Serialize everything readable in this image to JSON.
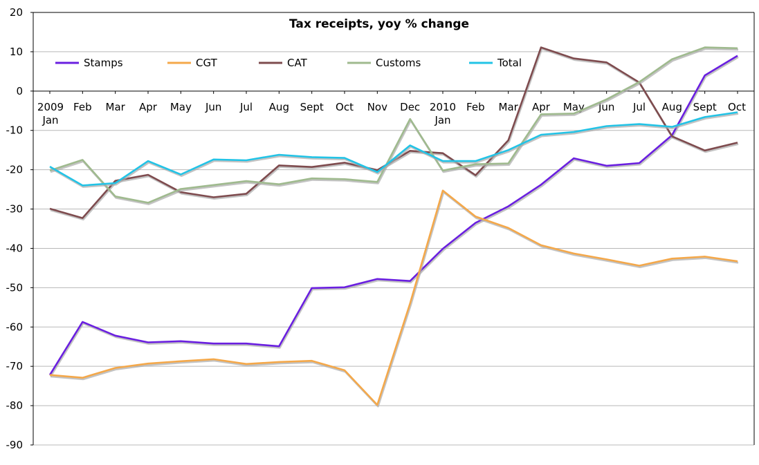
{
  "chart_data": {
    "type": "line",
    "title": "Tax receipts, yoy % change",
    "xlabel": "",
    "ylabel": "",
    "ylim": [
      -90,
      20
    ],
    "yticks": [
      20,
      10,
      0,
      -10,
      -20,
      -30,
      -40,
      -50,
      -60,
      -70,
      -80,
      -90
    ],
    "grid": true,
    "legend_position": "top",
    "categories": [
      {
        "label": "2009",
        "sub": "Jan"
      },
      {
        "label": "Feb"
      },
      {
        "label": "Mar"
      },
      {
        "label": "Apr"
      },
      {
        "label": "May"
      },
      {
        "label": "Jun"
      },
      {
        "label": "Jul"
      },
      {
        "label": "Aug"
      },
      {
        "label": "Sept"
      },
      {
        "label": "Oct"
      },
      {
        "label": "Nov"
      },
      {
        "label": "Dec"
      },
      {
        "label": "2010",
        "sub": "Jan"
      },
      {
        "label": "Feb"
      },
      {
        "label": "Mar"
      },
      {
        "label": "Apr"
      },
      {
        "label": "May"
      },
      {
        "label": "Jun"
      },
      {
        "label": "Jul"
      },
      {
        "label": "Aug"
      },
      {
        "label": "Sept"
      },
      {
        "label": "Oct"
      }
    ],
    "series": [
      {
        "name": "Stamps",
        "color": "#6a1fe0",
        "values": [
          -72.2,
          -58.7,
          -62.2,
          -63.9,
          -63.6,
          -64.2,
          -64.2,
          -64.9,
          -50.1,
          -49.9,
          -47.8,
          -48.3,
          -40.1,
          -33.5,
          -29.3,
          -23.8,
          -17.1,
          -19.0,
          -18.3,
          -11.2,
          4.0,
          9.0
        ]
      },
      {
        "name": "CGT",
        "color": "#f4a84a",
        "values": [
          -72.2,
          -72.9,
          -70.4,
          -69.3,
          -68.7,
          -68.2,
          -69.4,
          -68.9,
          -68.6,
          -71.0,
          -79.8,
          -54.0,
          -25.3,
          -31.9,
          -34.8,
          -39.2,
          -41.3,
          -42.8,
          -44.4,
          -42.6,
          -42.1,
          -43.3
        ]
      },
      {
        "name": "CAT",
        "color": "#7e4b4e",
        "values": [
          -29.9,
          -32.3,
          -22.8,
          -21.3,
          -25.7,
          -27.0,
          -26.1,
          -18.9,
          -19.3,
          -18.2,
          -20.1,
          -15.2,
          -15.8,
          -21.4,
          -12.5,
          11.1,
          8.3,
          7.3,
          2.2,
          -11.5,
          -15.1,
          -13.1
        ]
      },
      {
        "name": "Customs",
        "color": "#9fba8e",
        "values": [
          -20.2,
          -17.5,
          -26.8,
          -28.4,
          -24.9,
          -23.9,
          -22.9,
          -23.7,
          -22.2,
          -22.4,
          -23.1,
          -7.1,
          -20.2,
          -18.6,
          -18.4,
          -5.9,
          -5.7,
          -2.1,
          2.3,
          8.1,
          11.1,
          10.9
        ]
      },
      {
        "name": "Total",
        "color": "#22c3e6",
        "values": [
          -19.2,
          -24.0,
          -23.4,
          -17.8,
          -21.2,
          -17.4,
          -17.6,
          -16.2,
          -16.8,
          -17.0,
          -20.6,
          -13.8,
          -17.8,
          -17.8,
          -15.0,
          -11.1,
          -10.4,
          -8.9,
          -8.4,
          -9.1,
          -6.6,
          -5.4
        ]
      }
    ]
  }
}
